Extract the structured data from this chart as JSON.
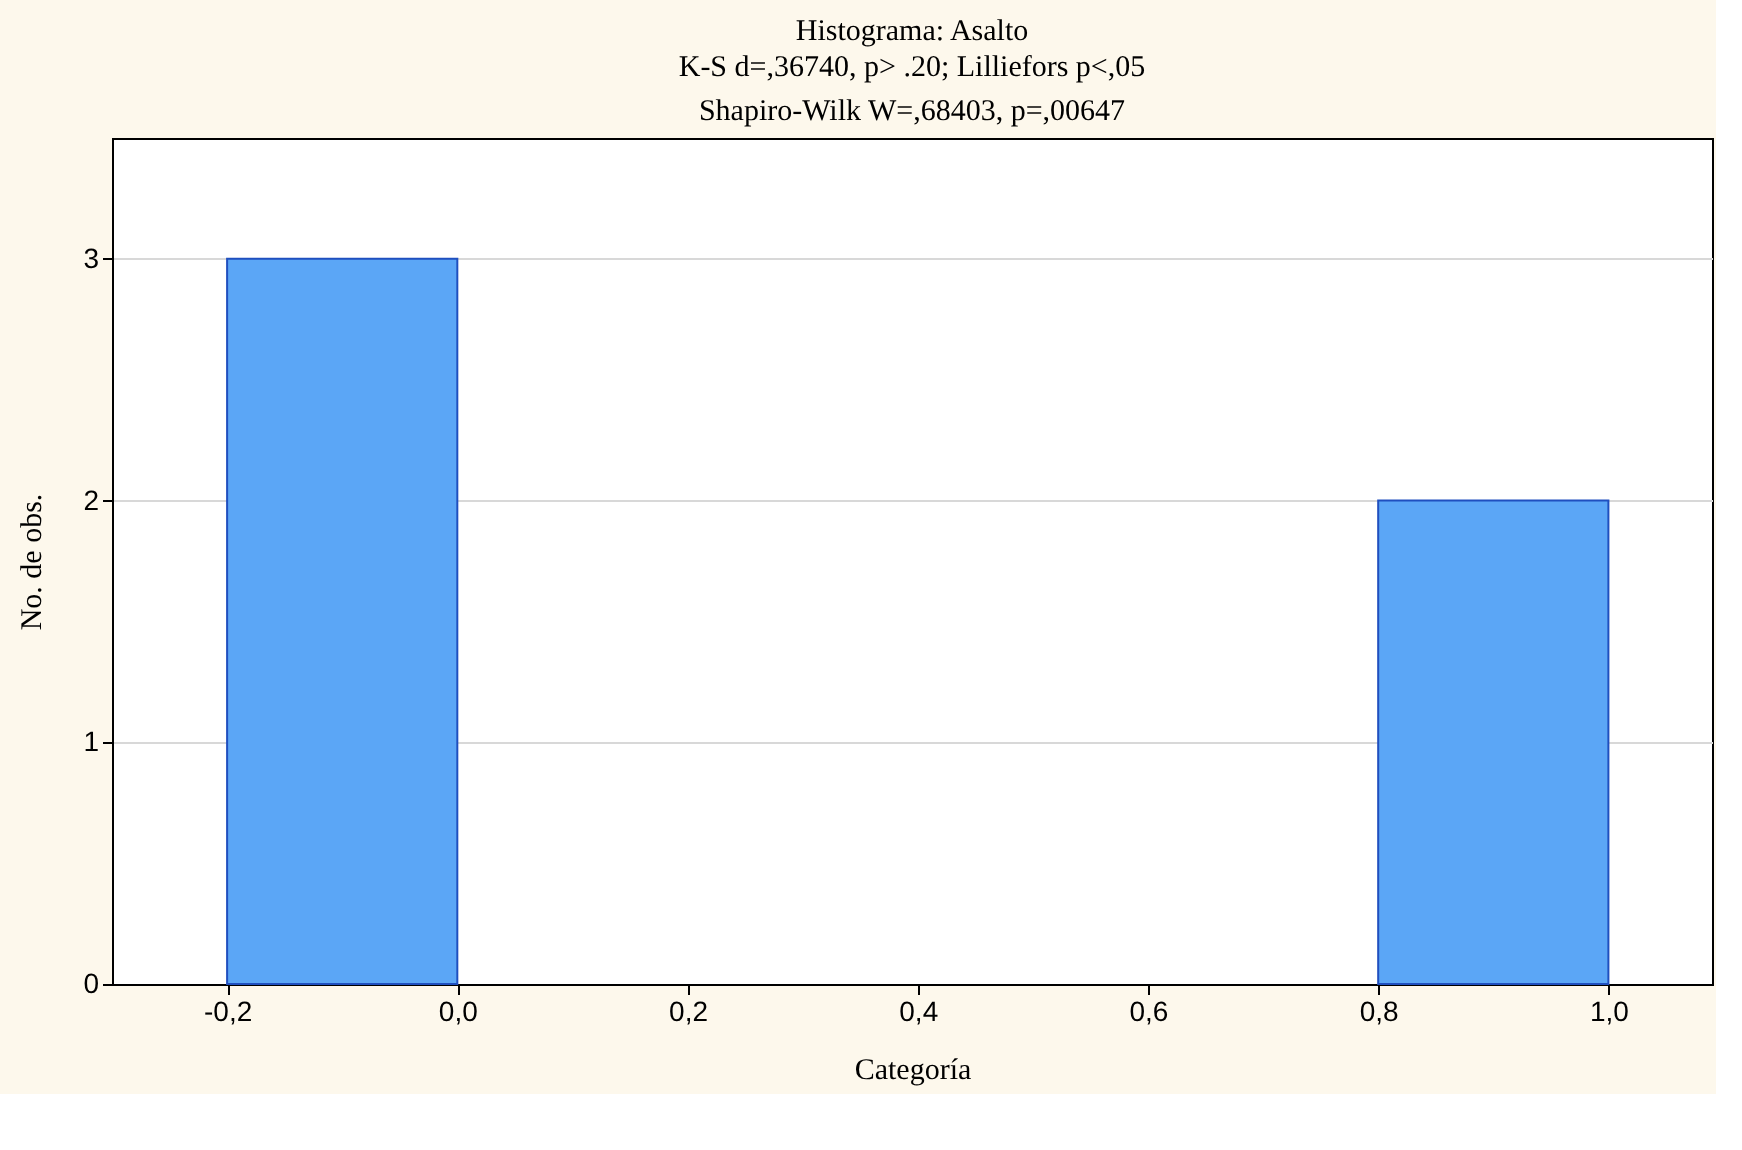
{
  "chart_data": {
    "type": "histogram",
    "title": "Histograma: Asalto",
    "subtitle": [
      "K-S d=,36740, p> .20; Lilliefors p<,05",
      "Shapiro-Wilk W=,68403, p=,00647"
    ],
    "xlabel": "Categoría",
    "ylabel": "No. de obs.",
    "bins": [
      -0.2,
      0.0,
      0.2,
      0.4,
      0.6,
      0.8,
      1.0
    ],
    "values": [
      3,
      0,
      0,
      0,
      0,
      2
    ],
    "color": "#5ba6f6",
    "xlim": [
      -0.3,
      1.09
    ],
    "ylim": [
      0,
      3.5
    ],
    "xticks": [
      {
        "value": -0.2,
        "label": "-0,2"
      },
      {
        "value": 0.0,
        "label": "0,0"
      },
      {
        "value": 0.2,
        "label": "0,2"
      },
      {
        "value": 0.4,
        "label": "0,4"
      },
      {
        "value": 0.6,
        "label": "0,6"
      },
      {
        "value": 0.8,
        "label": "0,8"
      },
      {
        "value": 1.0,
        "label": "1,0"
      }
    ],
    "yticks": [
      0,
      1,
      2,
      3
    ],
    "grid": "y"
  }
}
